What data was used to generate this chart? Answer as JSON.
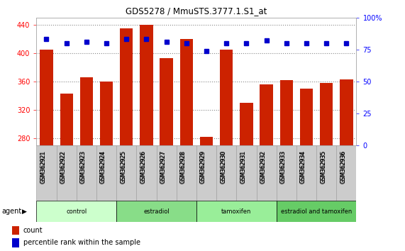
{
  "title": "GDS5278 / MmuSTS.3777.1.S1_at",
  "samples": [
    "GSM362921",
    "GSM362922",
    "GSM362923",
    "GSM362924",
    "GSM362925",
    "GSM362926",
    "GSM362927",
    "GSM362928",
    "GSM362929",
    "GSM362930",
    "GSM362931",
    "GSM362932",
    "GSM362933",
    "GSM362934",
    "GSM362935",
    "GSM362936"
  ],
  "counts": [
    405,
    343,
    366,
    360,
    435,
    440,
    393,
    420,
    282,
    405,
    330,
    356,
    362,
    350,
    358,
    363
  ],
  "percentile": [
    83,
    80,
    81,
    80,
    83,
    83,
    81,
    80,
    74,
    80,
    80,
    82,
    80,
    80,
    80,
    80
  ],
  "groups": [
    {
      "label": "control",
      "indices": [
        0,
        1,
        2,
        3
      ],
      "color": "#ccffcc"
    },
    {
      "label": "estradiol",
      "indices": [
        4,
        5,
        6,
        7
      ],
      "color": "#88dd88"
    },
    {
      "label": "tamoxifen",
      "indices": [
        8,
        9,
        10,
        11
      ],
      "color": "#99ee99"
    },
    {
      "label": "estradiol and tamoxifen",
      "indices": [
        12,
        13,
        14,
        15
      ],
      "color": "#66cc66"
    }
  ],
  "bar_color": "#cc2200",
  "dot_color": "#0000cc",
  "ylim_left": [
    270,
    450
  ],
  "ylim_right": [
    0,
    100
  ],
  "yticks_left": [
    280,
    320,
    360,
    400,
    440
  ],
  "yticks_right": [
    0,
    25,
    50,
    75,
    100
  ],
  "grid_color": "#888888",
  "gsm_area_color": "#cccccc",
  "agent_label": "agent",
  "legend_count": "count",
  "legend_pct": "percentile rank within the sample"
}
